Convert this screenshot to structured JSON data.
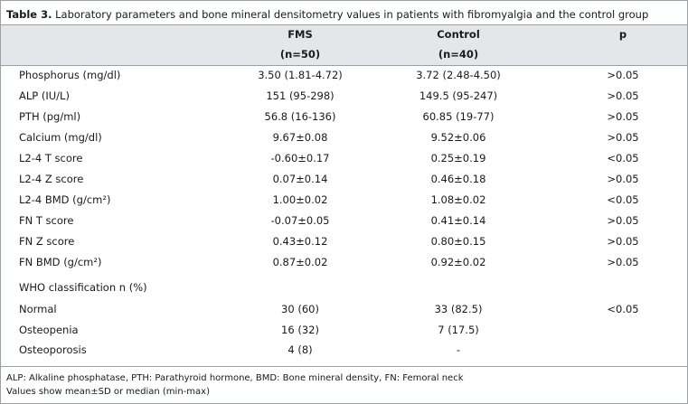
{
  "caption": {
    "label": "Table 3.",
    "text": "Laboratory parameters and bone mineral densitometry values in patients with fibromyalgia and the control group"
  },
  "table": {
    "header": [
      [
        "FMS",
        "Control",
        "p"
      ],
      [
        "(n=50)",
        "(n=40)"
      ]
    ],
    "rows": [
      [
        "Phosphorus (mg/dl)",
        "3.50 (1.81-4.72)",
        "3.72 (2.48-4.50)",
        ">0.05"
      ],
      [
        "ALP (IU/L)",
        "151 (95-298)",
        "149.5 (95-247)",
        ">0.05"
      ],
      [
        "PTH (pg/ml)",
        "56.8 (16-136)",
        "60.85 (19-77)",
        ">0.05"
      ],
      [
        "Calcium (mg/dl)",
        "9.67±0.08",
        "9.52±0.06",
        ">0.05"
      ],
      [
        "L2-4 T score",
        "-0.60±0.17",
        "0.25±0.19",
        "<0.05"
      ],
      [
        "L2-4 Z score",
        "0.07±0.14",
        "0.46±0.18",
        ">0.05"
      ],
      [
        "L2-4 BMD (g/cm²)",
        "1.00±0.02",
        "1.08±0.02",
        "<0.05"
      ],
      [
        "FN T score",
        "-0.07±0.05",
        "0.41±0.14",
        ">0.05"
      ],
      [
        "FN Z score",
        "0.43±0.12",
        "0.80±0.15",
        ">0.05"
      ],
      [
        "FN BMD (g/cm²)",
        "0.87±0.02",
        "0.92±0.02",
        ">0.05"
      ],
      [
        "WHO classification n (%)"
      ],
      [
        "Normal",
        "30 (60)",
        "33 (82.5)",
        "<0.05"
      ],
      [
        "Osteopenia",
        "16 (32)",
        "7 (17.5)"
      ],
      [
        "Osteoporosis",
        "4 (8)",
        "-"
      ]
    ]
  },
  "footnotes": [
    "ALP: Alkaline phosphatase, PTH: Parathyroid hormone, BMD:  Bone mineral density, FN: Femoral neck",
    "Values show mean±SD or median (min-max)"
  ]
}
